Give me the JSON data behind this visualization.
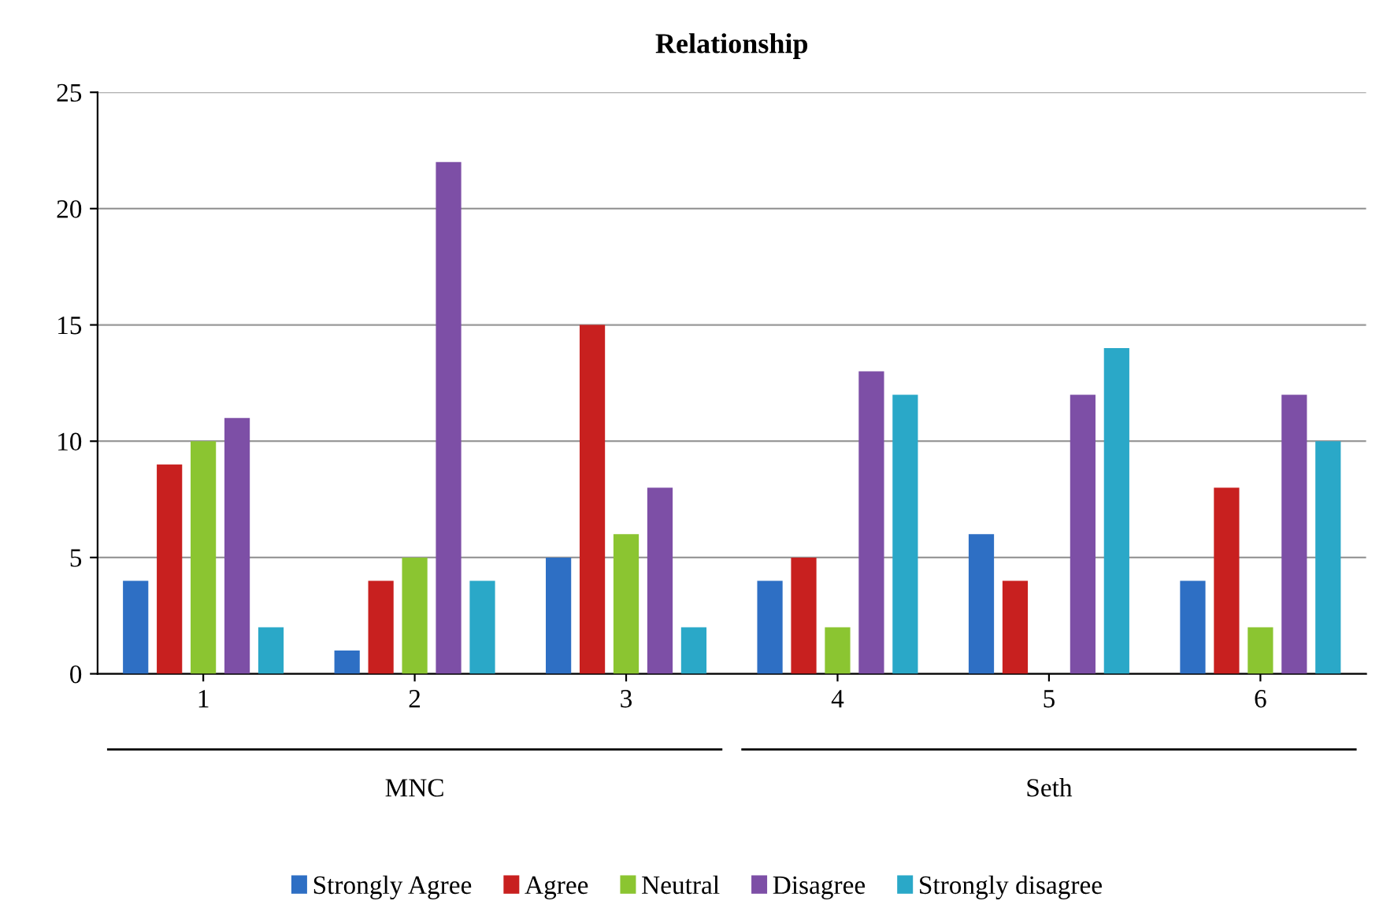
{
  "chart_data": {
    "type": "bar",
    "title": "Relationship",
    "categories": [
      "1",
      "2",
      "3",
      "4",
      "5",
      "6"
    ],
    "series": [
      {
        "name": "Strongly Agree",
        "color": "#2e6fc4",
        "values": [
          4,
          1,
          5,
          4,
          6,
          4
        ]
      },
      {
        "name": "Agree",
        "color": "#c8201f",
        "values": [
          9,
          4,
          15,
          5,
          4,
          8
        ]
      },
      {
        "name": "Neutral",
        "color": "#8bc531",
        "values": [
          10,
          5,
          6,
          2,
          0,
          2
        ]
      },
      {
        "name": "Disagree",
        "color": "#7d4fa6",
        "values": [
          11,
          22,
          8,
          13,
          12,
          12
        ]
      },
      {
        "name": "Strongly disagree",
        "color": "#2aa8c8",
        "values": [
          2,
          4,
          2,
          12,
          14,
          10
        ]
      }
    ],
    "ylim": [
      0,
      25
    ],
    "yticks": [
      0,
      5,
      10,
      15,
      20,
      25
    ],
    "grid": "y",
    "legend": "bottom",
    "annotations": [
      "MNC",
      "Seth"
    ]
  }
}
